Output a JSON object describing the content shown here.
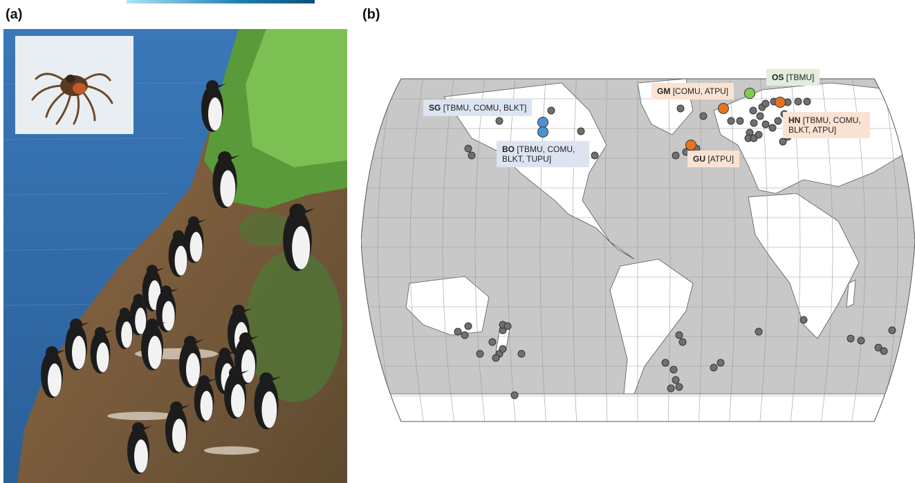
{
  "panels": {
    "a": {
      "label": "(a)"
    },
    "b": {
      "label": "(b)"
    }
  },
  "map": {
    "site_labels": {
      "sg": {
        "code": "SG",
        "species": "[TBMU, COMU, BLKT]"
      },
      "bo": {
        "code": "BO",
        "species_line1": "[TBMU, COMU,",
        "species_line2": "BLKT, TUPU]"
      },
      "gm": {
        "code": "GM",
        "species": "[COMU, ATPU]"
      },
      "os": {
        "code": "OS",
        "species": "[TBMU]"
      },
      "hn": {
        "code": "HN",
        "species_line1": "[TBMU, COMU,",
        "species_line2": "BLKT, ATPU]"
      },
      "gu": {
        "code": "GU",
        "species": "[ATPU]"
      }
    },
    "colors": {
      "ocean": "#c8c8c8",
      "land": "#ffffff",
      "grey_site": "#707070",
      "blue_site": "#4f8fd6",
      "orange_site": "#e8731e",
      "green_site": "#7fcf4f"
    }
  }
}
